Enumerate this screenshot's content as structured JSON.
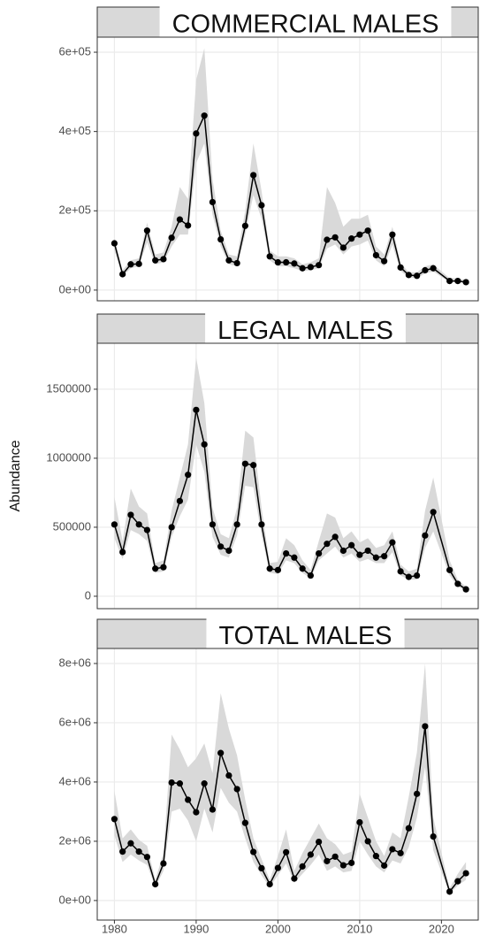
{
  "chart_data": [
    {
      "type": "line",
      "title": "COMMERCIAL MALES",
      "color": "#000000",
      "ribbon_color": "#d9d9d9",
      "grid": true,
      "x": [
        1980,
        1981,
        1982,
        1983,
        1984,
        1985,
        1986,
        1987,
        1988,
        1989,
        1990,
        1991,
        1992,
        1993,
        1994,
        1995,
        1996,
        1997,
        1998,
        1999,
        2000,
        2001,
        2002,
        2003,
        2004,
        2005,
        2006,
        2007,
        2008,
        2009,
        2010,
        2011,
        2012,
        2013,
        2014,
        2015,
        2016,
        2017,
        2018,
        2019,
        2021,
        2022,
        2023
      ],
      "values": [
        118000,
        40000,
        65000,
        66000,
        150000,
        75000,
        78000,
        132000,
        178000,
        163000,
        395000,
        440000,
        222000,
        128000,
        75000,
        68000,
        162000,
        290000,
        214000,
        85000,
        70000,
        70000,
        67000,
        55000,
        58000,
        63000,
        127000,
        133000,
        107000,
        130000,
        140000,
        150000,
        88000,
        73000,
        140000,
        57000,
        38000,
        36000,
        50000,
        55000,
        23000,
        23000,
        20000
      ],
      "lower": [
        100000,
        35000,
        55000,
        60000,
        120000,
        65000,
        70000,
        110000,
        140000,
        140000,
        320000,
        370000,
        190000,
        110000,
        65000,
        60000,
        140000,
        240000,
        180000,
        75000,
        60000,
        60000,
        55000,
        48000,
        50000,
        55000,
        105000,
        115000,
        90000,
        110000,
        115000,
        125000,
        75000,
        60000,
        115000,
        48000,
        32000,
        30000,
        42000,
        47000,
        20000,
        20000,
        17000
      ],
      "upper": [
        130000,
        50000,
        75000,
        80000,
        170000,
        90000,
        95000,
        160000,
        260000,
        230000,
        530000,
        610000,
        280000,
        150000,
        90000,
        85000,
        200000,
        370000,
        250000,
        100000,
        85000,
        85000,
        80000,
        65000,
        70000,
        80000,
        260000,
        220000,
        160000,
        180000,
        180000,
        190000,
        110000,
        90000,
        160000,
        68000,
        45000,
        45000,
        60000,
        65000,
        30000,
        30000,
        25000
      ],
      "xlim": [
        1977.9,
        2024.5
      ],
      "xticks": [
        1980,
        1990,
        2000,
        2010,
        2020
      ],
      "ylim": [
        -27000,
        638000
      ],
      "yticks": [
        {
          "value": 0,
          "label": "0e+00"
        },
        {
          "value": 200000,
          "label": "2e+05"
        },
        {
          "value": 400000,
          "label": "4e+05"
        },
        {
          "value": 600000,
          "label": "6e+05"
        }
      ]
    },
    {
      "type": "line",
      "title": "LEGAL MALES",
      "ylabel": "Abundance",
      "color": "#000000",
      "ribbon_color": "#d9d9d9",
      "grid": true,
      "x": [
        1980,
        1981,
        1982,
        1983,
        1984,
        1985,
        1986,
        1987,
        1988,
        1989,
        1990,
        1991,
        1992,
        1993,
        1994,
        1995,
        1996,
        1997,
        1998,
        1999,
        2000,
        2001,
        2002,
        2003,
        2004,
        2005,
        2006,
        2007,
        2008,
        2009,
        2010,
        2011,
        2012,
        2013,
        2014,
        2015,
        2016,
        2017,
        2018,
        2019,
        2021,
        2022,
        2023
      ],
      "values": [
        520000,
        320000,
        590000,
        520000,
        480000,
        200000,
        210000,
        500000,
        690000,
        880000,
        1350000,
        1100000,
        520000,
        360000,
        330000,
        520000,
        960000,
        950000,
        520000,
        200000,
        190000,
        310000,
        280000,
        200000,
        150000,
        310000,
        380000,
        430000,
        330000,
        370000,
        300000,
        330000,
        280000,
        290000,
        390000,
        180000,
        140000,
        150000,
        440000,
        610000,
        190000,
        90000,
        50000
      ],
      "lower": [
        420000,
        270000,
        480000,
        450000,
        400000,
        170000,
        180000,
        430000,
        580000,
        700000,
        1100000,
        900000,
        430000,
        300000,
        280000,
        440000,
        800000,
        790000,
        440000,
        170000,
        160000,
        260000,
        240000,
        170000,
        130000,
        260000,
        310000,
        360000,
        280000,
        310000,
        250000,
        270000,
        240000,
        240000,
        320000,
        150000,
        120000,
        120000,
        350000,
        470000,
        150000,
        70000,
        40000
      ],
      "upper": [
        720000,
        400000,
        780000,
        650000,
        600000,
        240000,
        260000,
        620000,
        860000,
        1100000,
        1730000,
        1400000,
        640000,
        450000,
        420000,
        640000,
        1200000,
        1150000,
        640000,
        240000,
        250000,
        420000,
        370000,
        260000,
        190000,
        400000,
        600000,
        570000,
        420000,
        470000,
        390000,
        420000,
        350000,
        370000,
        470000,
        230000,
        180000,
        200000,
        620000,
        860000,
        260000,
        120000,
        70000
      ],
      "xlim": [
        1977.9,
        2024.5
      ],
      "xticks": [
        1980,
        1990,
        2000,
        2010,
        2020
      ],
      "ylim": [
        -90000,
        1833000
      ],
      "yticks": [
        0,
        500000,
        1000000,
        1500000
      ]
    },
    {
      "type": "line",
      "title": "TOTAL MALES",
      "color": "#000000",
      "ribbon_color": "#d9d9d9",
      "grid": true,
      "x": [
        1980,
        1981,
        1982,
        1983,
        1984,
        1985,
        1986,
        1987,
        1988,
        1989,
        1990,
        1991,
        1992,
        1993,
        1994,
        1995,
        1996,
        1997,
        1998,
        1999,
        2000,
        2001,
        2002,
        2003,
        2004,
        2005,
        2006,
        2007,
        2008,
        2009,
        2010,
        2011,
        2012,
        2013,
        2014,
        2015,
        2016,
        2017,
        2018,
        2019,
        2021,
        2022,
        2023
      ],
      "values": [
        2750000,
        1650000,
        1930000,
        1650000,
        1470000,
        550000,
        1250000,
        3980000,
        3950000,
        3400000,
        2980000,
        3950000,
        3070000,
        4980000,
        4220000,
        3760000,
        2620000,
        1640000,
        1090000,
        550000,
        1100000,
        1630000,
        740000,
        1150000,
        1550000,
        1980000,
        1330000,
        1480000,
        1190000,
        1270000,
        2640000,
        2000000,
        1500000,
        1180000,
        1730000,
        1600000,
        2440000,
        3600000,
        5880000,
        2160000,
        300000,
        650000,
        920000
      ],
      "lower": [
        2200000,
        1300000,
        1550000,
        1350000,
        1200000,
        450000,
        1000000,
        3000000,
        3100000,
        2700000,
        2000000,
        3100000,
        2300000,
        3800000,
        3300000,
        3000000,
        2100000,
        1300000,
        850000,
        450000,
        850000,
        1250000,
        600000,
        900000,
        1200000,
        1550000,
        1000000,
        1150000,
        950000,
        1000000,
        2000000,
        1550000,
        1150000,
        950000,
        1350000,
        1250000,
        1800000,
        2800000,
        4500000,
        1700000,
        230000,
        500000,
        700000
      ],
      "upper": [
        3700000,
        2100000,
        2400000,
        2050000,
        1850000,
        700000,
        1600000,
        5600000,
        5100000,
        4500000,
        4800000,
        5300000,
        4300000,
        7000000,
        5800000,
        4900000,
        3400000,
        2100000,
        1400000,
        700000,
        1500000,
        2400000,
        1000000,
        1600000,
        2100000,
        2600000,
        2100000,
        1900000,
        1550000,
        1650000,
        3600000,
        2800000,
        2000000,
        1500000,
        2300000,
        2100000,
        3500000,
        5000000,
        8000000,
        2800000,
        420000,
        900000,
        1300000
      ],
      "xlim": [
        1977.9,
        2024.5
      ],
      "xticks": [
        1980,
        1990,
        2000,
        2010,
        2020
      ],
      "ylim": [
        -660000,
        8507000
      ],
      "yticks": [
        {
          "value": 0,
          "label": "0e+00"
        },
        {
          "value": 2000000,
          "label": "2e+06"
        },
        {
          "value": 4000000,
          "label": "4e+06"
        },
        {
          "value": 6000000,
          "label": "6e+06"
        },
        {
          "value": 8000000,
          "label": "8e+06"
        }
      ]
    }
  ]
}
